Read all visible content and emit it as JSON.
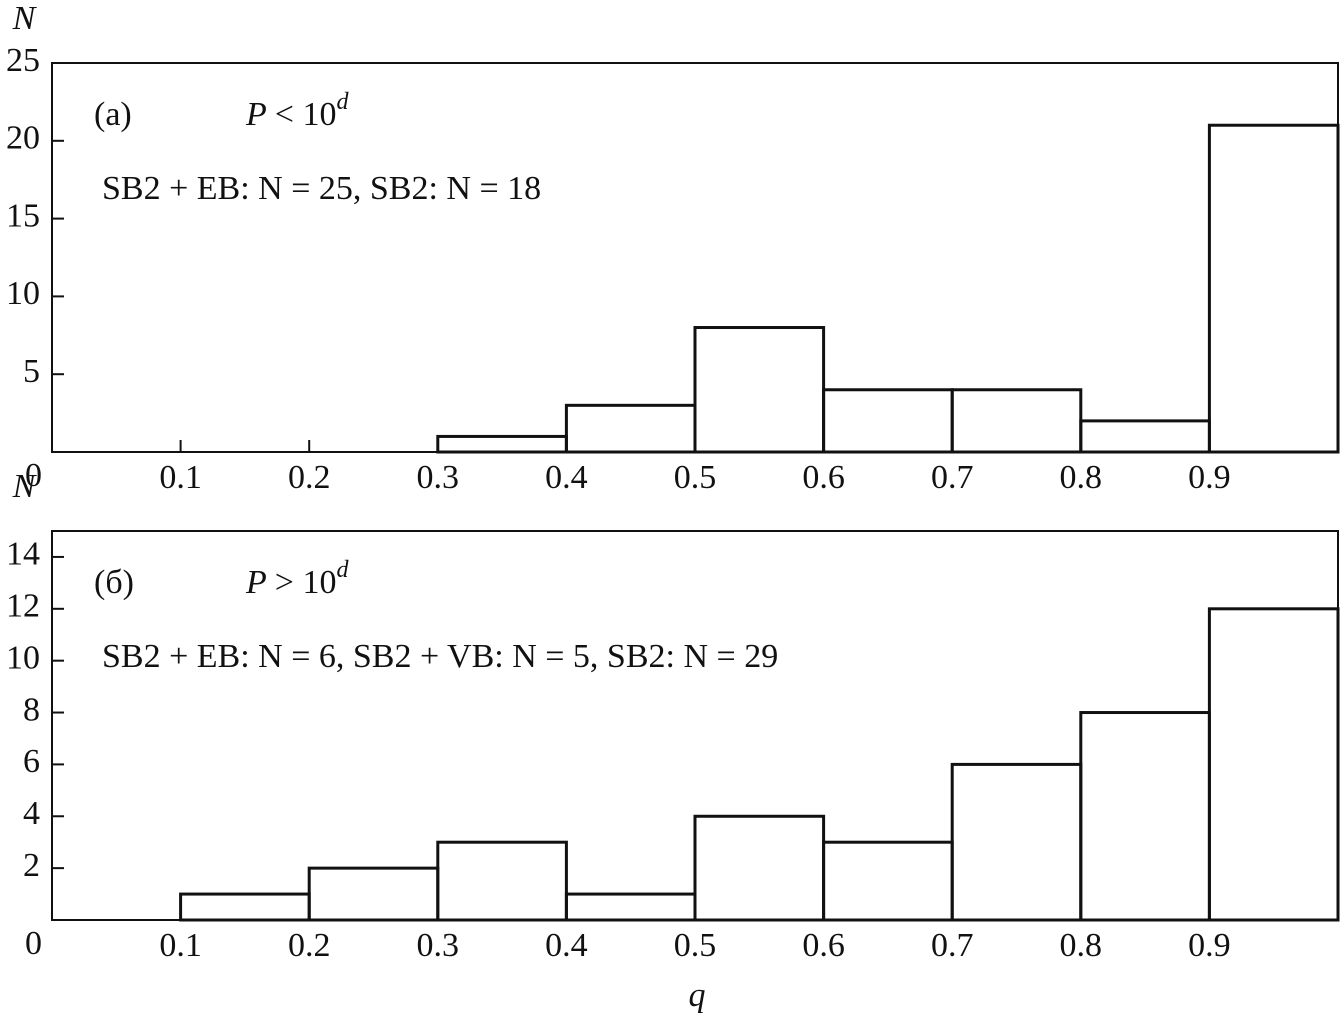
{
  "chart_data": [
    {
      "type": "histogram",
      "y_label": "N",
      "panel_label": "(a)",
      "condition": {
        "variable": "P",
        "relation": "< 10",
        "superscript": "d"
      },
      "note": "SB2 + EB: N = 25, SB2: N = 18",
      "bins": [
        0,
        0.1,
        0.2,
        0.3,
        0.4,
        0.5,
        0.6,
        0.7,
        0.8,
        0.9,
        1.0
      ],
      "values": [
        0,
        0,
        0,
        1,
        3,
        8,
        4,
        4,
        2,
        21
      ],
      "xlim": [
        0,
        1.0
      ],
      "xticks": [
        0.1,
        0.2,
        0.3,
        0.4,
        0.5,
        0.6,
        0.7,
        0.8,
        0.9
      ],
      "ylim": [
        0,
        25
      ],
      "yticks": [
        0,
        5,
        10,
        15,
        20,
        25
      ],
      "color": "#111111"
    },
    {
      "type": "histogram",
      "y_label": "N",
      "x_label": "q",
      "panel_label": "(б)",
      "condition": {
        "variable": "P",
        "relation": "> 10",
        "superscript": "d"
      },
      "note": "SB2 + EB: N = 6, SB2 + VB: N = 5, SB2: N = 29",
      "bins": [
        0,
        0.1,
        0.2,
        0.3,
        0.4,
        0.5,
        0.6,
        0.7,
        0.8,
        0.9,
        1.0
      ],
      "values": [
        0,
        1,
        2,
        3,
        1,
        4,
        3,
        6,
        8,
        12
      ],
      "xlim": [
        0,
        1.0
      ],
      "xticks": [
        0.1,
        0.2,
        0.3,
        0.4,
        0.5,
        0.6,
        0.7,
        0.8,
        0.9
      ],
      "ylim": [
        0,
        15
      ],
      "yticks": [
        0,
        2,
        4,
        6,
        8,
        10,
        12,
        14
      ],
      "color": "#111111"
    }
  ]
}
